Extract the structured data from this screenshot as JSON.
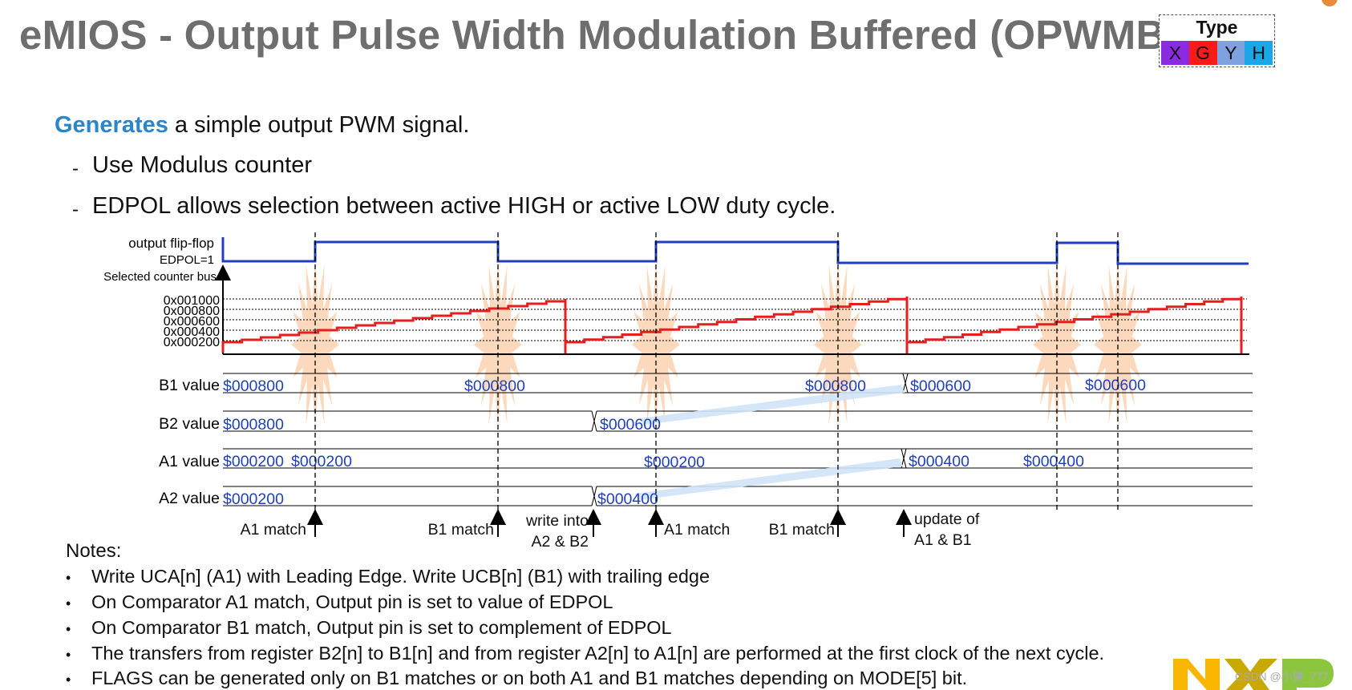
{
  "title": "eMIOS - Output Pulse Width Modulation Buffered (OPWMB)",
  "type_box": {
    "label": "Type",
    "cells": [
      {
        "text": "X",
        "color": "#8a2be2"
      },
      {
        "text": "G",
        "color": "#ff1a1a"
      },
      {
        "text": "Y",
        "color": "#7fa1e0"
      },
      {
        "text": "H",
        "color": "#19a7e8"
      }
    ]
  },
  "intro": {
    "keyword": "Generates",
    "rest": " a simple output PWM signal.",
    "bullets": [
      "Use Modulus counter",
      "EDPOL allows selection between active HIGH or active LOW duty cycle."
    ],
    "dash": "-"
  },
  "diagram": {
    "labels": {
      "flipflop": "output flip-flop",
      "edpol": "EDPOL=1",
      "counter_bus": "Selected counter bus",
      "b1": "B1 value",
      "b2": "B2 value",
      "a1": "A1 value",
      "a2": "A2 value"
    },
    "counter_ticks": [
      "0x001000",
      "0x000800",
      "0x000600",
      "0x000400",
      "0x000200"
    ],
    "b1_values": [
      "$000800",
      "$000800",
      "$000800",
      "$000600",
      "$000600"
    ],
    "b2_values": [
      "$000800",
      "$000600"
    ],
    "a1_values": [
      "$000200",
      "$000200",
      "$000200",
      "$000400",
      "$000400"
    ],
    "a2_values": [
      "$000200",
      "$000400"
    ],
    "events": [
      {
        "line1": "A1 match",
        "line2": ""
      },
      {
        "line1": "B1 match",
        "line2": ""
      },
      {
        "line1": "write into",
        "line2": "A2 & B2"
      },
      {
        "line1": "A1 match",
        "line2": ""
      },
      {
        "line1": "B1 match",
        "line2": ""
      },
      {
        "line1": "update of",
        "line2": "A1 & B1"
      }
    ],
    "colors": {
      "signal": "#1f3fbf",
      "counter": "#e61e1e",
      "value_text": "#1f3fbf",
      "burst": "#fcd2b0",
      "transfer": "#cfe3f7"
    }
  },
  "notes": {
    "heading": "Notes:",
    "bullet": "•",
    "items": [
      "Write UCA[n] (A1) with Leading Edge. Write UCB[n] (B1) with trailing edge",
      "On Comparator A1 match, Output pin is set to value of EDPOL",
      "On Comparator B1 match, Output pin is set to complement of EDPOL",
      "The transfers from register B2[n] to B1[n] and from register A2[n] to A1[n] are performed at the first clock of the next cycle.",
      "FLAGS can be generated only on B1 matches or on both A1 and B1 matches depending on MODE[5] bit."
    ]
  },
  "footer": {
    "watermark": "CSDN @小健_777",
    "logo_colors": [
      "#f9b500",
      "#8cc63f"
    ]
  }
}
